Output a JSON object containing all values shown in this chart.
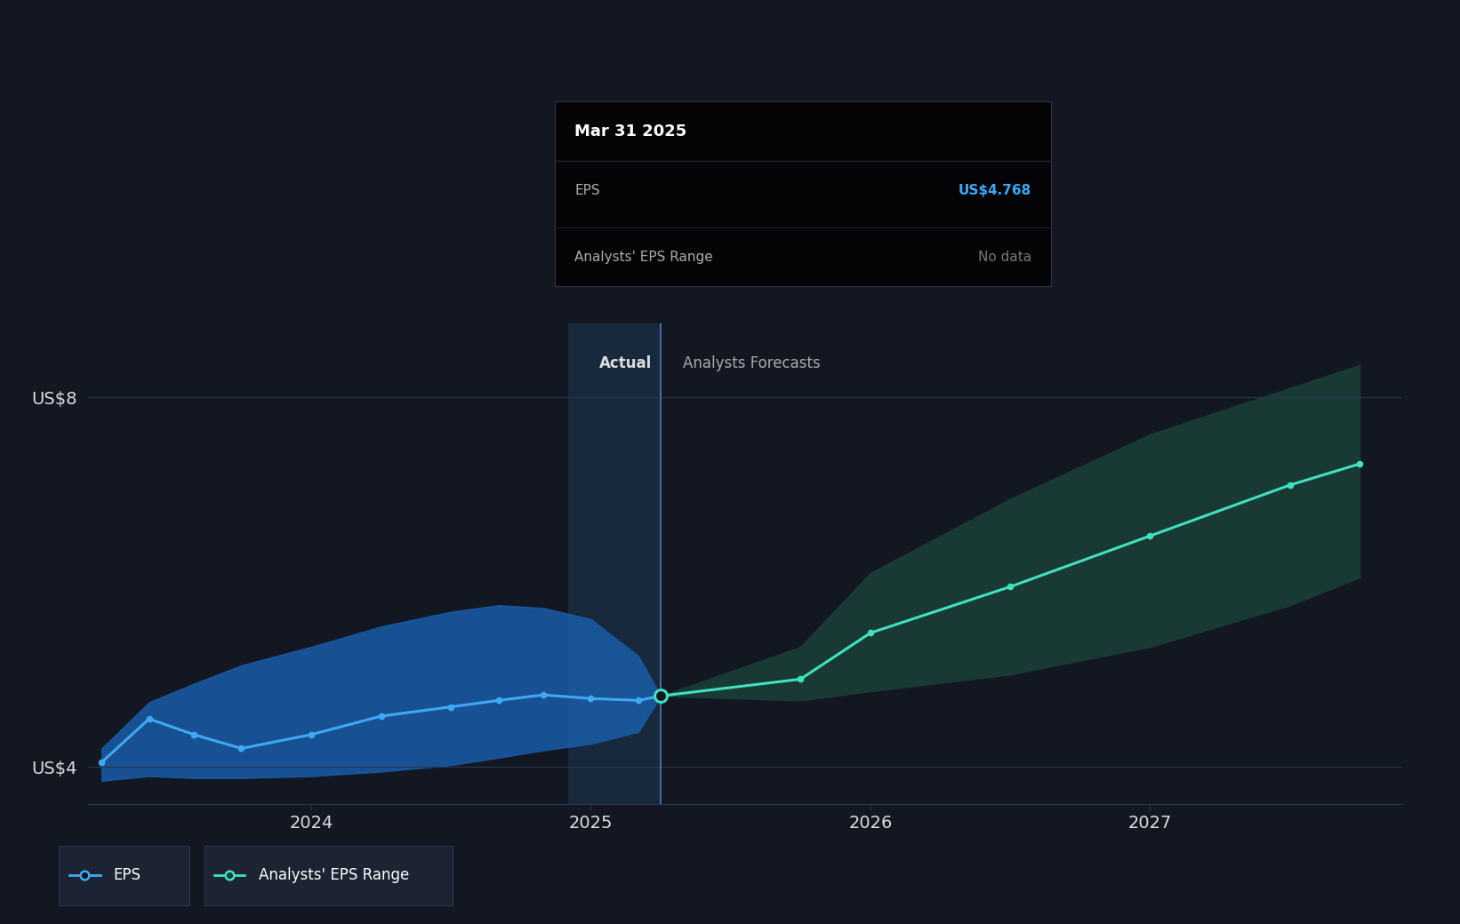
{
  "bg_color": "#131722",
  "chart_bg": "#131722",
  "eps_actual_x": [
    2023.25,
    2023.42,
    2023.58,
    2023.75,
    2024.0,
    2024.25,
    2024.5,
    2024.67,
    2024.83,
    2025.0,
    2025.17,
    2025.25
  ],
  "eps_actual_y": [
    4.05,
    4.52,
    4.35,
    4.2,
    4.35,
    4.55,
    4.65,
    4.72,
    4.78,
    4.74,
    4.72,
    4.768
  ],
  "eps_forecast_x": [
    2025.25,
    2025.75,
    2026.0,
    2026.5,
    2027.0,
    2027.5,
    2027.75
  ],
  "eps_forecast_y": [
    4.768,
    4.95,
    5.45,
    5.95,
    6.5,
    7.05,
    7.28
  ],
  "actual_band_x": [
    2023.25,
    2023.42,
    2023.58,
    2023.75,
    2024.0,
    2024.25,
    2024.5,
    2024.67,
    2024.83,
    2025.0,
    2025.17,
    2025.25
  ],
  "actual_band_upper": [
    4.2,
    4.7,
    4.9,
    5.1,
    5.3,
    5.52,
    5.68,
    5.75,
    5.72,
    5.6,
    5.2,
    4.768
  ],
  "actual_band_lower": [
    3.85,
    3.9,
    3.88,
    3.88,
    3.9,
    3.95,
    4.02,
    4.1,
    4.18,
    4.25,
    4.38,
    4.768
  ],
  "forecast_band_x": [
    2025.25,
    2025.75,
    2026.0,
    2026.5,
    2027.0,
    2027.5,
    2027.75
  ],
  "forecast_band_upper": [
    4.768,
    5.3,
    6.1,
    6.9,
    7.6,
    8.1,
    8.35
  ],
  "forecast_band_lower": [
    4.768,
    4.72,
    4.82,
    5.0,
    5.3,
    5.75,
    6.05
  ],
  "divider_x": 2025.25,
  "highlight_x_start": 2024.92,
  "highlight_x_end": 2025.25,
  "ylim": [
    3.6,
    8.8
  ],
  "xlim": [
    2023.2,
    2027.9
  ],
  "ytick_vals": [
    4.0,
    8.0
  ],
  "ytick_labels": [
    "US$4",
    "US$8"
  ],
  "xtick_positions": [
    2024.0,
    2025.0,
    2026.0,
    2027.0
  ],
  "xtick_labels": [
    "2024",
    "2025",
    "2026",
    "2027"
  ],
  "actual_line_color": "#3fa8f5",
  "forecast_line_color": "#40e0c0",
  "actual_band_color": "#1a5ca8",
  "forecast_band_color": "#1a3d38",
  "divider_color": "#5588cc",
  "highlight_bg": "#1a2d45",
  "tooltip_bg": "#050508",
  "tooltip_title": "Mar 31 2025",
  "tooltip_eps_label": "EPS",
  "tooltip_eps_value": "US$4.768",
  "tooltip_range_label": "Analysts' EPS Range",
  "tooltip_range_value": "No data",
  "tooltip_eps_color": "#3fa8f5",
  "tooltip_range_color": "#777777",
  "tooltip_border_color": "#333344",
  "actual_label": "Actual",
  "forecast_label": "Analysts Forecasts",
  "label_color": "#aaaaaa",
  "legend_eps_label": "EPS",
  "legend_range_label": "Analysts' EPS Range",
  "legend_bg": "#1c2333",
  "grid_color": "#2a3550",
  "text_color": "#dddddd",
  "marker_x": 2025.25,
  "marker_y": 4.768
}
